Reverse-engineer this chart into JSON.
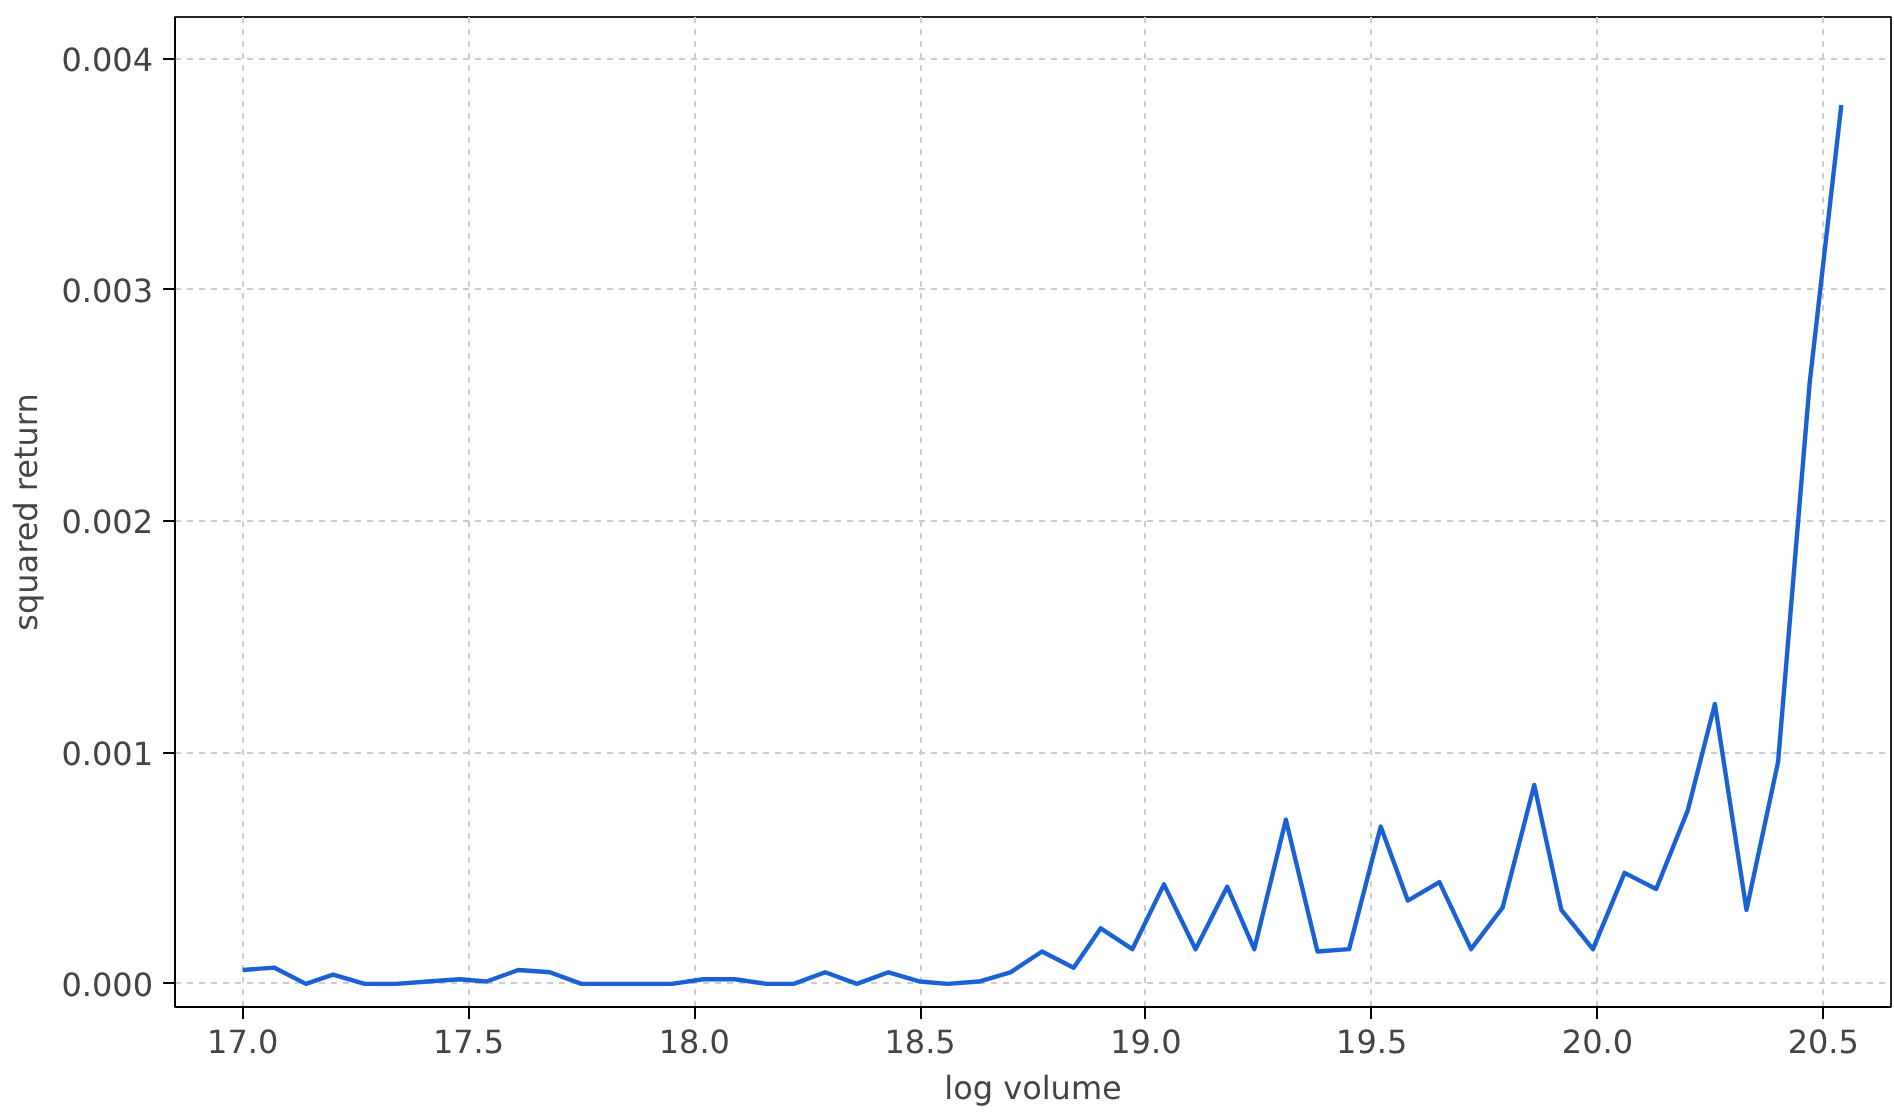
{
  "chart_data": {
    "type": "line",
    "xlabel": "log volume",
    "ylabel": "squared return",
    "x": [
      17.0,
      17.07,
      17.14,
      17.2,
      17.27,
      17.34,
      17.41,
      17.48,
      17.54,
      17.61,
      17.68,
      17.75,
      17.82,
      17.88,
      17.95,
      18.02,
      18.09,
      18.16,
      18.22,
      18.29,
      18.36,
      18.43,
      18.5,
      18.56,
      18.63,
      18.7,
      18.77,
      18.84,
      18.9,
      18.97,
      19.04,
      19.11,
      19.18,
      19.24,
      19.31,
      19.38,
      19.45,
      19.52,
      19.58,
      19.65,
      19.72,
      19.79,
      19.86,
      19.92,
      19.99,
      20.06,
      20.13,
      20.2,
      20.26,
      20.33,
      20.4,
      20.47,
      20.54
    ],
    "series": [
      {
        "color": "#1a62d4",
        "values": [
          6e-05,
          7e-05,
          0.0,
          4e-05,
          0.0,
          0.0,
          1e-05,
          2e-05,
          1e-05,
          6e-05,
          5e-05,
          0.0,
          0.0,
          0.0,
          0.0,
          2e-05,
          2e-05,
          0.0,
          0.0,
          5e-05,
          0.0,
          5e-05,
          1e-05,
          0.0,
          1e-05,
          5e-05,
          0.00014,
          7e-05,
          0.00024,
          0.00015,
          0.00043,
          0.00015,
          0.00042,
          0.00015,
          0.00071,
          0.00014,
          0.00015,
          0.00068,
          0.00036,
          0.00044,
          0.00015,
          0.00033,
          0.00086,
          0.00032,
          0.00015,
          0.00048,
          0.00041,
          0.00075,
          0.00121,
          0.00032,
          0.00096,
          0.0026,
          0.0038
        ]
      }
    ],
    "xlim": [
      16.85,
      20.65
    ],
    "ylim": [
      -0.0001,
      0.00418
    ],
    "xticks": [
      {
        "value": 17,
        "label": "17.0"
      },
      {
        "value": 17.5,
        "label": "17.5"
      },
      {
        "value": 18,
        "label": "18.0"
      },
      {
        "value": 18.5,
        "label": "18.5"
      },
      {
        "value": 19,
        "label": "19.0"
      },
      {
        "value": 19.5,
        "label": "19.5"
      },
      {
        "value": 20,
        "label": "20.0"
      },
      {
        "value": 20.5,
        "label": "20.5"
      }
    ],
    "yticks": [
      {
        "value": 0,
        "label": "0.000"
      },
      {
        "value": 0.001,
        "label": "0.001"
      },
      {
        "value": 0.002,
        "label": "0.002"
      },
      {
        "value": 0.003,
        "label": "0.003"
      },
      {
        "value": 0.004,
        "label": "0.004"
      }
    ],
    "grid": true,
    "line_style": "solid",
    "marker": "none"
  }
}
